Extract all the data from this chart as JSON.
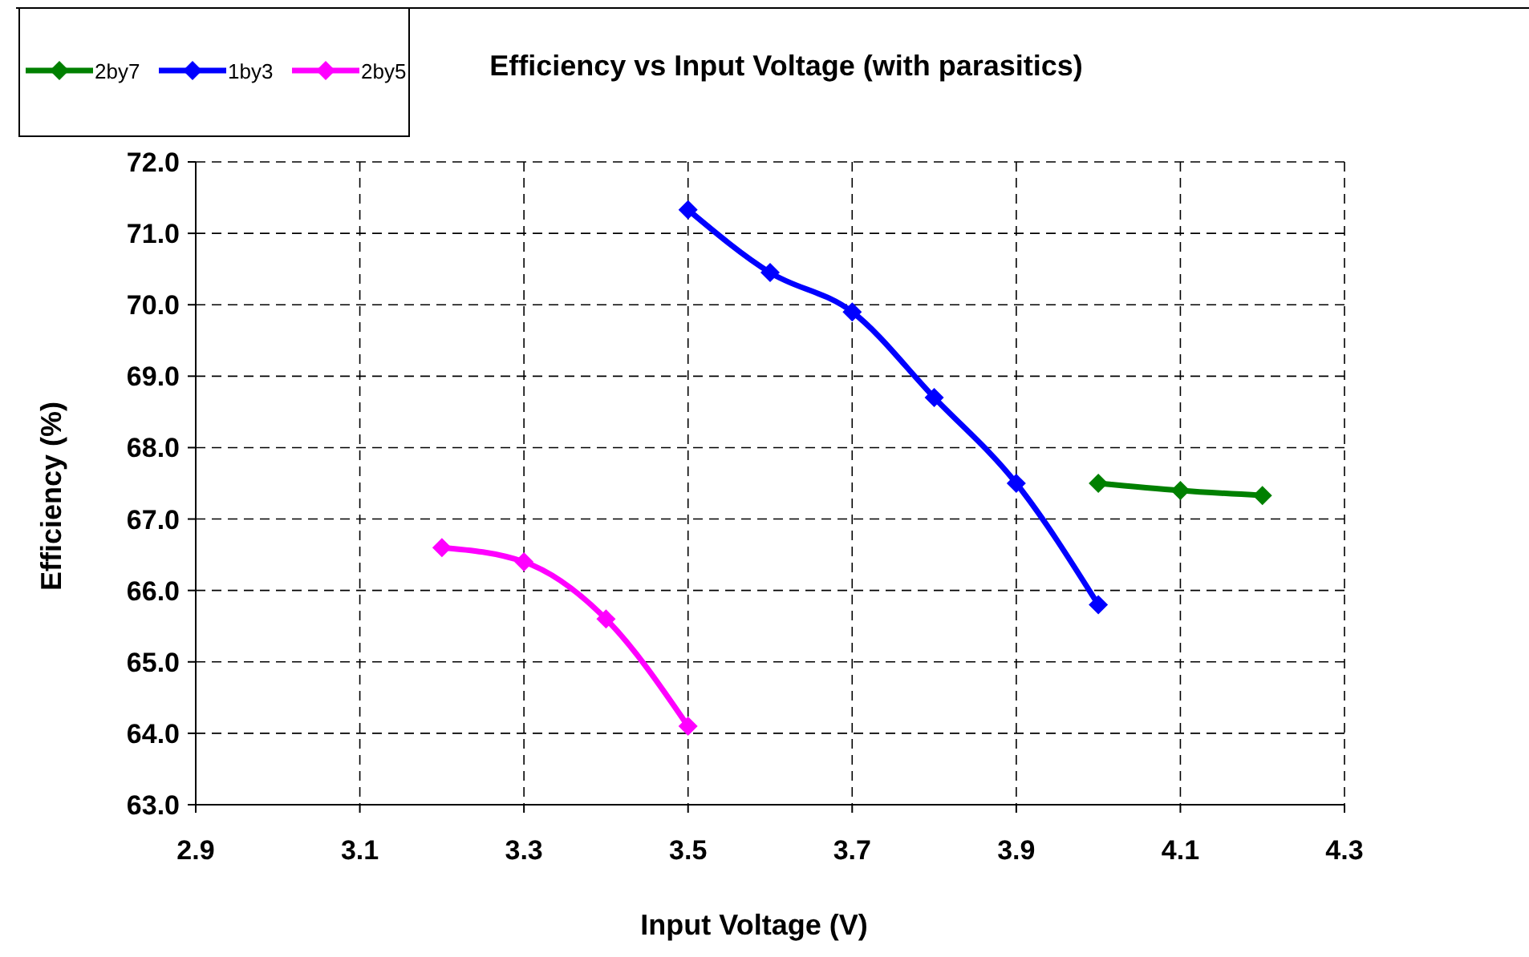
{
  "chart_data": {
    "type": "line",
    "title": "Efficiency vs Input Voltage (with parasitics)",
    "xlabel": "Input Voltage (V)",
    "ylabel": "Efficiency (%)",
    "series": [
      {
        "name": "2by7",
        "color": "#008000",
        "x": [
          4.0,
          4.1,
          4.2
        ],
        "values": [
          67.5,
          67.4,
          67.33
        ]
      },
      {
        "name": "1by3",
        "color": "#0000ff",
        "x": [
          3.5,
          3.6,
          3.7,
          3.8,
          3.9,
          4.0
        ],
        "values": [
          71.33,
          70.45,
          69.9,
          68.7,
          67.5,
          65.8
        ]
      },
      {
        "name": "2by5",
        "color": "#ff00ff",
        "x": [
          3.2,
          3.3,
          3.4,
          3.5
        ],
        "values": [
          66.6,
          66.4,
          65.6,
          64.1
        ]
      }
    ],
    "xlim": [
      2.9,
      4.3
    ],
    "xticks": [
      2.9,
      3.1,
      3.3,
      3.5,
      3.7,
      3.9,
      4.1,
      4.3
    ],
    "ylim": [
      63,
      72
    ],
    "yticks": [
      {
        "value": 63,
        "label": "63.0"
      },
      {
        "value": 64,
        "label": "64.0"
      },
      {
        "value": 65,
        "label": "65.0"
      },
      {
        "value": 66,
        "label": "66.0"
      },
      {
        "value": 67,
        "label": "67.0"
      },
      {
        "value": 68,
        "label": "68.0"
      },
      {
        "value": 69,
        "label": "69.0"
      },
      {
        "value": 70,
        "label": "70.0"
      },
      {
        "value": 71,
        "label": "71.0"
      },
      {
        "value": 72,
        "label": "72.0"
      }
    ],
    "grid": true,
    "legend": "top left",
    "marker": "diamond",
    "line_style": "solid"
  }
}
